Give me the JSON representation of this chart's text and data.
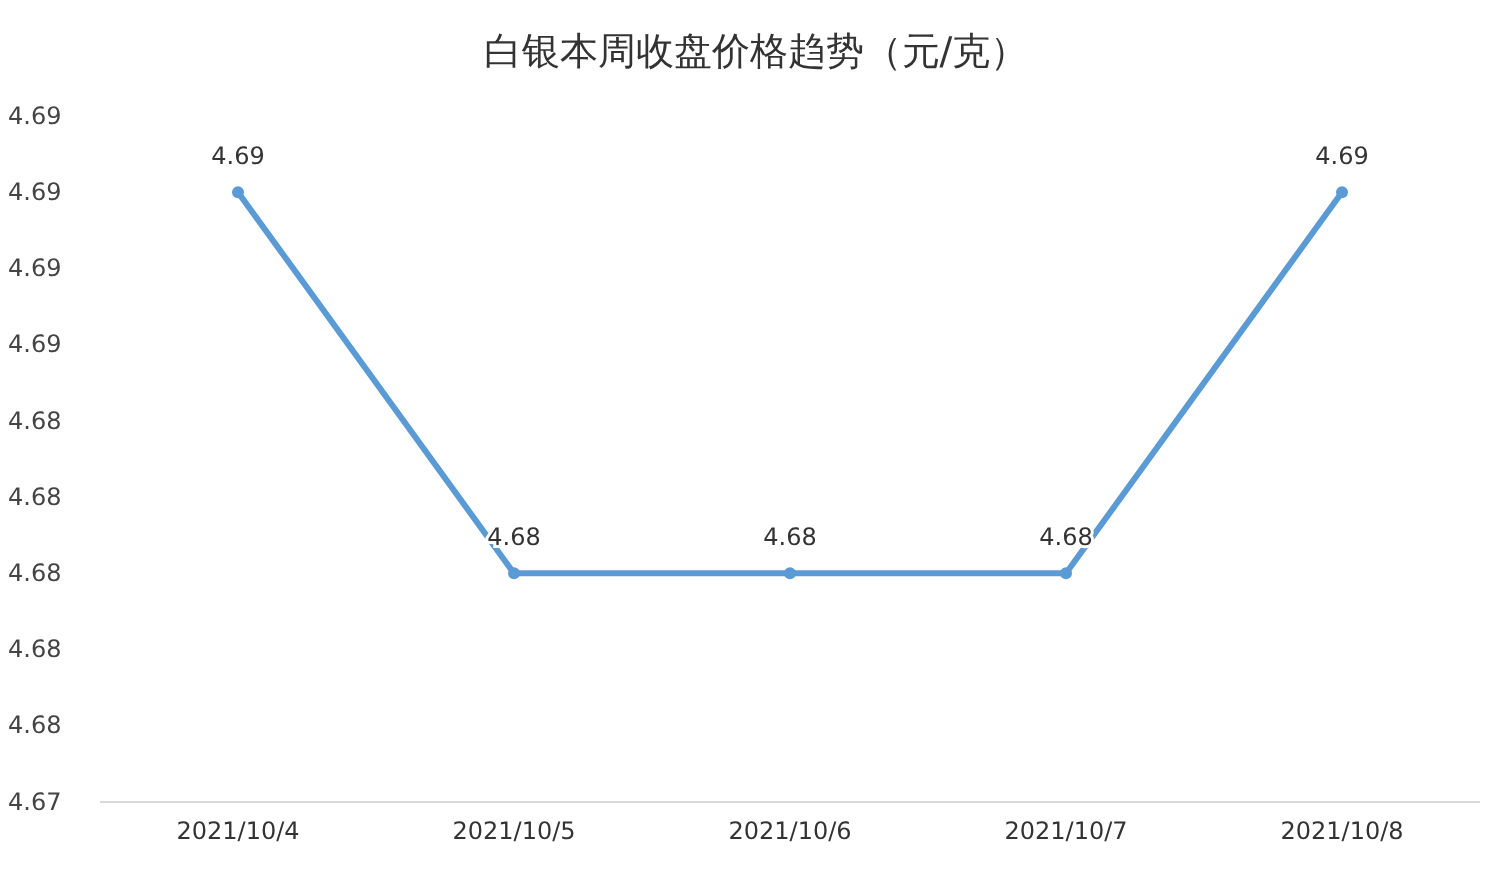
{
  "chart_data": {
    "type": "line",
    "title": "白银本周收盘价格趋势（元/克）",
    "categories": [
      "2021/10/4",
      "2021/10/5",
      "2021/10/6",
      "2021/10/7",
      "2021/10/8"
    ],
    "series": [
      {
        "color": "#5b9bd5",
        "values": [
          4.69,
          4.68,
          4.68,
          4.68,
          4.69
        ]
      }
    ],
    "ylim": [
      4.674,
      4.692
    ],
    "yticks": [
      {
        "value": 4.674,
        "label": "4.67"
      },
      {
        "value": 4.676,
        "label": "4.68"
      },
      {
        "value": 4.678,
        "label": "4.68"
      },
      {
        "value": 4.68,
        "label": "4.68"
      },
      {
        "value": 4.682,
        "label": "4.68"
      },
      {
        "value": 4.684,
        "label": "4.68"
      },
      {
        "value": 4.686,
        "label": "4.69"
      },
      {
        "value": 4.688,
        "label": "4.69"
      },
      {
        "value": 4.69,
        "label": "4.69"
      },
      {
        "value": 4.692,
        "label": "4.69"
      }
    ],
    "data_labels": true,
    "marker": "circle",
    "grid": false
  }
}
